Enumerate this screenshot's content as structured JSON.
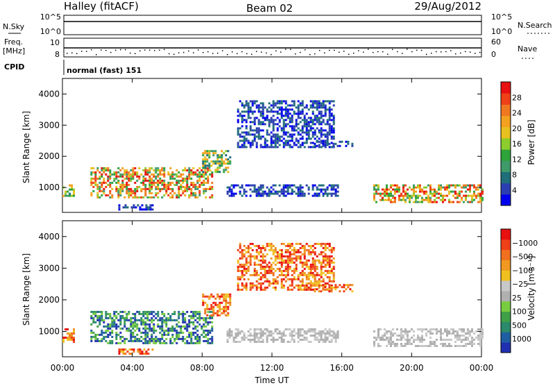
{
  "header": {
    "station": "Halley (fitACF)",
    "beam": "Beam 02",
    "date": "29/Aug/2012"
  },
  "info_panels": {
    "nsky_label": "N.Sky",
    "nsearch_label": "N.Search",
    "nsky_ticks": [
      "10^5",
      "10^0"
    ],
    "nsky_right_ticks": [
      "10^5",
      "10^0"
    ],
    "freq_label_1": "Freq.",
    "freq_label_2": "[MHz]",
    "freq_ticks": [
      "10",
      "8"
    ],
    "nave_label": "Nave",
    "nave_ticks": [
      "60",
      "0"
    ],
    "cpid_label": "CPID",
    "cpid_text": "normal (fast) 151"
  },
  "chart_data": [
    {
      "type": "heatmap",
      "name": "power",
      "ylabel": "Slant Range [km]",
      "xlabel": "",
      "x_ticks": [
        "00:00",
        "04:00",
        "08:00",
        "12:00",
        "16:00",
        "20:00",
        "00:00"
      ],
      "y_ticks": [
        1000,
        2000,
        3000,
        4000
      ],
      "ylim": [
        200,
        4500
      ],
      "xlim_hours": [
        0,
        24
      ],
      "colorbar": {
        "label": "Power [dB]",
        "ticks": [
          "4",
          "8",
          "12",
          "16",
          "20",
          "24",
          "28"
        ],
        "colors": [
          "#0000ee",
          "#2b3fb0",
          "#1f6e7a",
          "#3f9a6a",
          "#2ea33a",
          "#8ccc2c",
          "#e8c020",
          "#f4a020",
          "#f07820",
          "#f04018",
          "#e81010"
        ]
      },
      "regions": [
        {
          "h0": 0.0,
          "h1": 0.6,
          "r0": 700,
          "r1": 1100,
          "level": "mid"
        },
        {
          "h0": 1.6,
          "h1": 8.6,
          "r0": 650,
          "r1": 1650,
          "level": "high"
        },
        {
          "h0": 3.2,
          "h1": 5.2,
          "r0": 280,
          "r1": 460,
          "level": "low"
        },
        {
          "h0": 8.0,
          "h1": 9.6,
          "r0": 1500,
          "r1": 2200,
          "level": "mid"
        },
        {
          "h0": 9.4,
          "h1": 15.8,
          "r0": 700,
          "r1": 1100,
          "level": "low"
        },
        {
          "h0": 10.0,
          "h1": 15.6,
          "r0": 2300,
          "r1": 3800,
          "level": "low"
        },
        {
          "h0": 14.4,
          "h1": 16.6,
          "r0": 2300,
          "r1": 2500,
          "level": "low"
        },
        {
          "h0": 17.8,
          "h1": 24.0,
          "r0": 550,
          "r1": 1100,
          "level": "high"
        }
      ]
    },
    {
      "type": "heatmap",
      "name": "velocity",
      "ylabel": "Slant Range [km]",
      "xlabel": "Time UT",
      "x_ticks": [
        "00:00",
        "04:00",
        "08:00",
        "12:00",
        "16:00",
        "20:00",
        "00:00"
      ],
      "y_ticks": [
        1000,
        2000,
        3000,
        4000
      ],
      "ylim": [
        200,
        4500
      ],
      "xlim_hours": [
        0,
        24
      ],
      "colorbar": {
        "label": "Velocity [m s⁻¹]",
        "ticks": [
          "1000",
          "500",
          "100",
          "25",
          "−25",
          "−100",
          "−500",
          "−1000"
        ],
        "colors": [
          "#2030b0",
          "#1f5ea0",
          "#2a8a6a",
          "#3fa048",
          "#78cc40",
          "#b0b0b0",
          "#c8c8c8",
          "#f0c020",
          "#f09820",
          "#f07020",
          "#f04018",
          "#e81010"
        ]
      },
      "regions": [
        {
          "h0": 0.0,
          "h1": 0.6,
          "r0": 700,
          "r1": 1100,
          "level": "neg"
        },
        {
          "h0": 1.6,
          "h1": 8.6,
          "r0": 650,
          "r1": 1650,
          "level": "pos"
        },
        {
          "h0": 3.2,
          "h1": 5.2,
          "r0": 280,
          "r1": 460,
          "level": "neg"
        },
        {
          "h0": 8.0,
          "h1": 9.6,
          "r0": 1500,
          "r1": 2200,
          "level": "neg"
        },
        {
          "h0": 9.4,
          "h1": 15.8,
          "r0": 700,
          "r1": 1100,
          "level": "gray"
        },
        {
          "h0": 10.0,
          "h1": 15.6,
          "r0": 2300,
          "r1": 3800,
          "level": "neg"
        },
        {
          "h0": 14.4,
          "h1": 16.6,
          "r0": 2300,
          "r1": 2500,
          "level": "neg"
        },
        {
          "h0": 17.8,
          "h1": 24.0,
          "r0": 550,
          "r1": 1100,
          "level": "gray"
        }
      ]
    }
  ]
}
